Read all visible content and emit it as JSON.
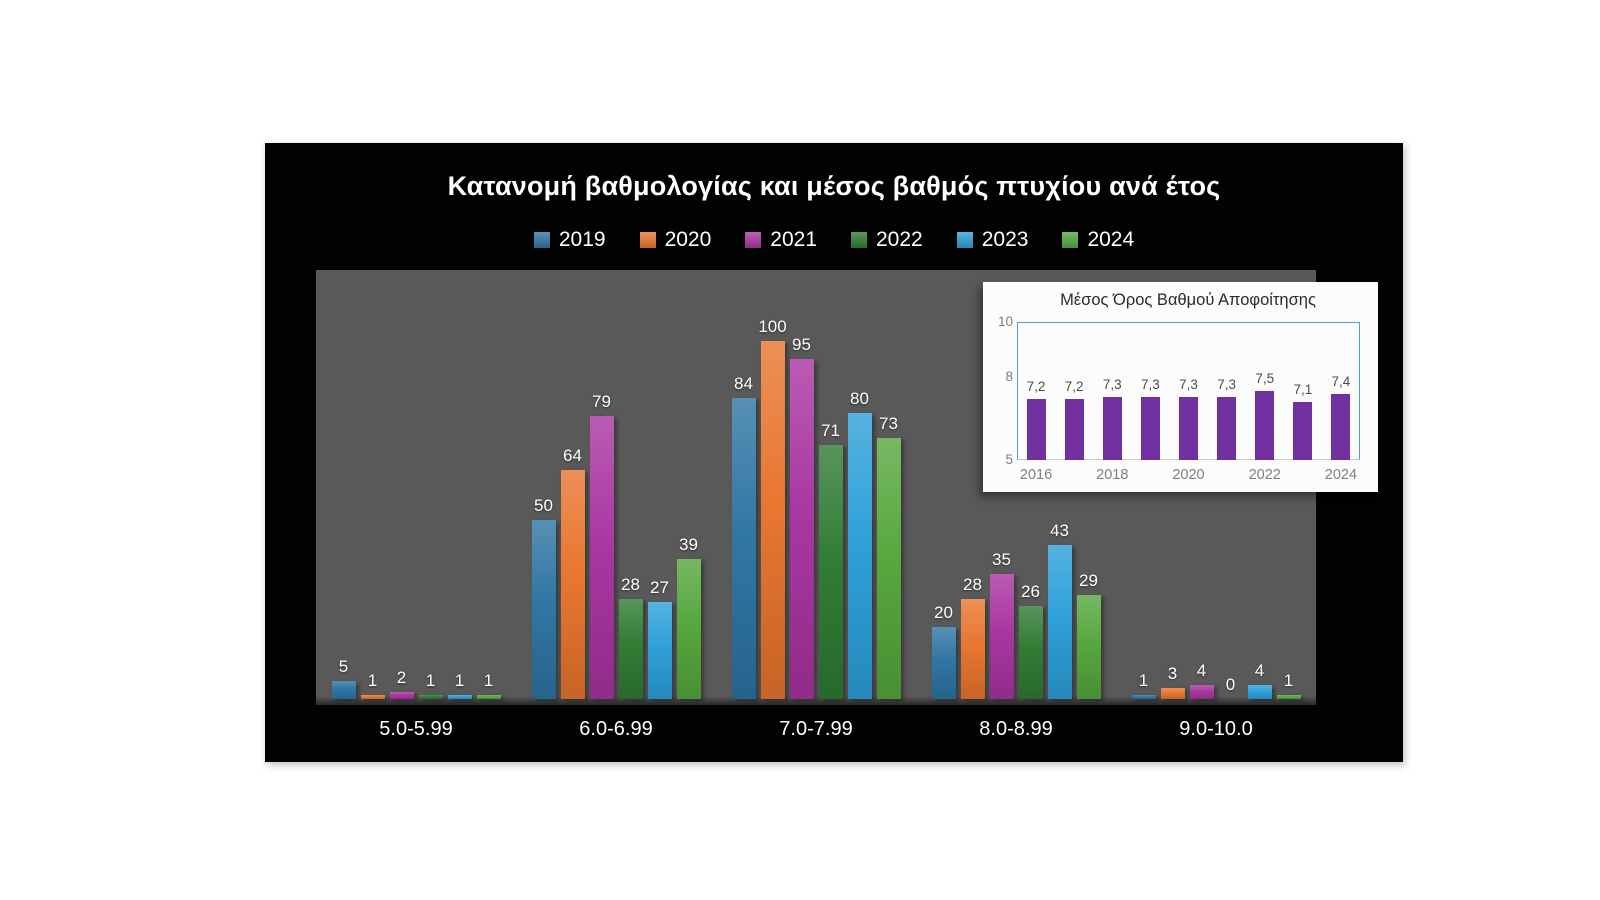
{
  "title": "Κατανομή βαθμολογίας και μέσος βαθμός πτυχίου ανά έτος",
  "colors": {
    "canvas_bg": "#020202",
    "plot_bg": "#595959",
    "text": "#ffffff",
    "inset_bg": "#fcfcfc",
    "inset_frame_blue": "#46a2d9",
    "inset_axis_gray": "#c8c8c8",
    "inset_bar_purple": "#7030a0"
  },
  "chart_data": [
    {
      "type": "bar",
      "title": "Κατανομή βαθμολογίας και μέσος βαθμός πτυχίου ανά έτος",
      "categories": [
        "5.0-5.99",
        "6.0-6.99",
        "7.0-7.99",
        "8.0-8.99",
        "9.0-10.0"
      ],
      "series": [
        {
          "name": "2019",
          "color": "#2d74a2",
          "values": [
            5,
            50,
            84,
            20,
            1
          ]
        },
        {
          "name": "2020",
          "color": "#e8742d",
          "values": [
            1,
            64,
            100,
            28,
            3
          ]
        },
        {
          "name": "2021",
          "color": "#a833a0",
          "values": [
            2,
            79,
            95,
            35,
            4
          ]
        },
        {
          "name": "2022",
          "color": "#2e7a32",
          "values": [
            1,
            28,
            71,
            26,
            0
          ]
        },
        {
          "name": "2023",
          "color": "#2b9fd9",
          "values": [
            1,
            27,
            80,
            43,
            4
          ]
        },
        {
          "name": "2024",
          "color": "#55a63c",
          "values": [
            1,
            39,
            73,
            29,
            1
          ]
        }
      ],
      "xlabel": "",
      "ylabel": "",
      "ylim": [
        0,
        120
      ],
      "grid": false,
      "legend_position": "top",
      "data_labels": true
    },
    {
      "type": "bar",
      "title": "Μέσος Όρος Βαθμού Αποφοίτησης",
      "x": [
        2016,
        2017,
        2018,
        2019,
        2020,
        2021,
        2022,
        2023,
        2024
      ],
      "values": [
        7.2,
        7.2,
        7.3,
        7.3,
        7.3,
        7.3,
        7.5,
        7.1,
        7.4
      ],
      "value_labels": [
        "7,2",
        "7,2",
        "7,3",
        "7,3",
        "7,3",
        "7,3",
        "7,5",
        "7,1",
        "7,4"
      ],
      "x_tick_labels": [
        "2016",
        "2018",
        "2020",
        "2022",
        "2024"
      ],
      "y_ticks": [
        10,
        8,
        5
      ],
      "ylim": [
        5,
        10
      ],
      "bar_color": "#7030a0",
      "grid": false,
      "legend_position": "none",
      "data_labels": true
    }
  ]
}
